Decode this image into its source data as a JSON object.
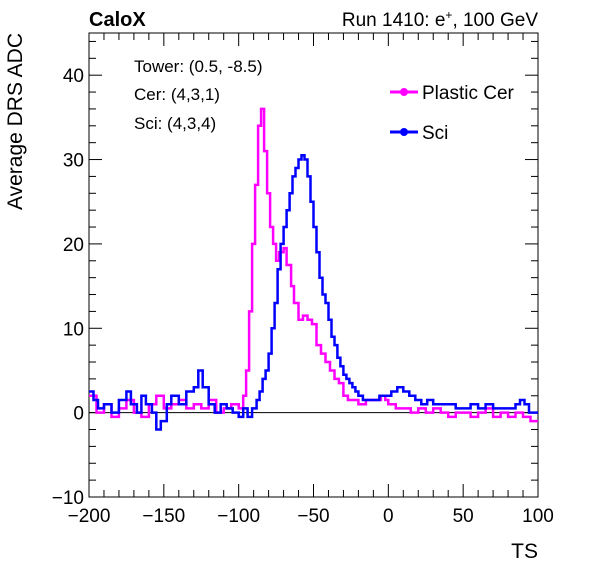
{
  "header": {
    "brand": "CaloX",
    "run_label_prefix": "Run 1410: e",
    "run_label_sup": "+",
    "run_label_suffix": ", 100 GeV"
  },
  "info_box": {
    "tower": "Tower: (0.5, -8.5)",
    "cer": "Cer: (4,3,1)",
    "sci": "Sci: (4,3,4)"
  },
  "chart_data": {
    "type": "line",
    "title": "",
    "xlabel": "TS",
    "ylabel": "Average DRS ADC",
    "xlim": [
      -200,
      100
    ],
    "ylim": [
      -10,
      45
    ],
    "x_ticks": [
      -200,
      -150,
      -100,
      -50,
      0,
      50,
      100
    ],
    "y_ticks": [
      -10,
      0,
      10,
      20,
      30,
      40
    ],
    "x_tick_labels": [
      "−200",
      "−150",
      "−100",
      "−50",
      "0",
      "50",
      "100"
    ],
    "y_tick_labels": [
      "−10",
      "0",
      "10",
      "20",
      "30",
      "40"
    ],
    "reference_line_y": 0,
    "legend_position": "top-right",
    "series": [
      {
        "name": "Plastic Cer",
        "color": "#ff00ff",
        "points": [
          [
            -200,
            2
          ],
          [
            -195,
            0
          ],
          [
            -190,
            1
          ],
          [
            -185,
            -0.5
          ],
          [
            -180,
            0.5
          ],
          [
            -175,
            1.5
          ],
          [
            -170,
            0
          ],
          [
            -165,
            -0.5
          ],
          [
            -160,
            1
          ],
          [
            -155,
            2
          ],
          [
            -150,
            0.5
          ],
          [
            -145,
            1
          ],
          [
            -140,
            1.5
          ],
          [
            -135,
            0.5
          ],
          [
            -130,
            1
          ],
          [
            -125,
            0.5
          ],
          [
            -120,
            1.5
          ],
          [
            -115,
            0
          ],
          [
            -110,
            0.5
          ],
          [
            -105,
            1
          ],
          [
            -100,
            0.5
          ],
          [
            -97,
            2
          ],
          [
            -95,
            5
          ],
          [
            -93,
            12
          ],
          [
            -91,
            20
          ],
          [
            -89,
            27
          ],
          [
            -87,
            34
          ],
          [
            -85,
            36
          ],
          [
            -83,
            31
          ],
          [
            -81,
            26
          ],
          [
            -79,
            22
          ],
          [
            -77,
            20
          ],
          [
            -75,
            18
          ],
          [
            -73,
            19
          ],
          [
            -70,
            19.5
          ],
          [
            -68,
            17.5
          ],
          [
            -65,
            15
          ],
          [
            -63,
            13
          ],
          [
            -60,
            11
          ],
          [
            -57,
            11.5
          ],
          [
            -54,
            11
          ],
          [
            -51,
            10.5
          ],
          [
            -48,
            8
          ],
          [
            -45,
            7
          ],
          [
            -42,
            6
          ],
          [
            -39,
            5
          ],
          [
            -36,
            4
          ],
          [
            -33,
            3.5
          ],
          [
            -30,
            2
          ],
          [
            -27,
            1.5
          ],
          [
            -24,
            1.5
          ],
          [
            -20,
            1
          ],
          [
            -15,
            1.5
          ],
          [
            -10,
            1.5
          ],
          [
            -5,
            2
          ],
          [
            -2,
            1.5
          ],
          [
            0,
            1
          ],
          [
            5,
            0.5
          ],
          [
            10,
            0.5
          ],
          [
            15,
            0
          ],
          [
            20,
            0.5
          ],
          [
            25,
            0
          ],
          [
            30,
            0.5
          ],
          [
            35,
            0
          ],
          [
            40,
            -0.5
          ],
          [
            45,
            0
          ],
          [
            50,
            0
          ],
          [
            55,
            -0.5
          ],
          [
            60,
            0
          ],
          [
            65,
            0.5
          ],
          [
            70,
            -0.5
          ],
          [
            75,
            0
          ],
          [
            80,
            -0.5
          ],
          [
            85,
            0
          ],
          [
            90,
            -0.5
          ],
          [
            95,
            -1
          ],
          [
            100,
            -1
          ]
        ]
      },
      {
        "name": "Sci",
        "color": "#0000ff",
        "points": [
          [
            -200,
            2.5
          ],
          [
            -197,
            1.5
          ],
          [
            -194,
            0.5
          ],
          [
            -190,
            1
          ],
          [
            -185,
            0
          ],
          [
            -180,
            1.5
          ],
          [
            -175,
            2.5
          ],
          [
            -172,
            1
          ],
          [
            -168,
            0
          ],
          [
            -165,
            2
          ],
          [
            -162,
            1
          ],
          [
            -158,
            0
          ],
          [
            -155,
            -2
          ],
          [
            -152,
            -1
          ],
          [
            -148,
            1
          ],
          [
            -145,
            2
          ],
          [
            -140,
            1
          ],
          [
            -135,
            2.5
          ],
          [
            -130,
            3
          ],
          [
            -127,
            5
          ],
          [
            -124,
            3
          ],
          [
            -120,
            1
          ],
          [
            -116,
            0
          ],
          [
            -112,
            1
          ],
          [
            -108,
            0.5
          ],
          [
            -104,
            0
          ],
          [
            -100,
            -0.5
          ],
          [
            -97,
            0.5
          ],
          [
            -94,
            -0.5
          ],
          [
            -91,
            0.5
          ],
          [
            -88,
            1.5
          ],
          [
            -86,
            2.5
          ],
          [
            -84,
            4
          ],
          [
            -82,
            5
          ],
          [
            -80,
            7
          ],
          [
            -78,
            10
          ],
          [
            -76,
            13
          ],
          [
            -74,
            17
          ],
          [
            -72,
            20
          ],
          [
            -70,
            22
          ],
          [
            -68,
            24
          ],
          [
            -66,
            26
          ],
          [
            -64,
            28
          ],
          [
            -62,
            29
          ],
          [
            -60,
            30
          ],
          [
            -58,
            30.5
          ],
          [
            -56,
            30
          ],
          [
            -54,
            28
          ],
          [
            -52,
            25
          ],
          [
            -50,
            22
          ],
          [
            -48,
            19
          ],
          [
            -46,
            16
          ],
          [
            -44,
            14
          ],
          [
            -42,
            13
          ],
          [
            -40,
            11
          ],
          [
            -38,
            9
          ],
          [
            -36,
            8
          ],
          [
            -34,
            6.5
          ],
          [
            -32,
            5.5
          ],
          [
            -30,
            4.5
          ],
          [
            -28,
            4
          ],
          [
            -26,
            3.5
          ],
          [
            -24,
            3
          ],
          [
            -22,
            2.5
          ],
          [
            -20,
            2
          ],
          [
            -17,
            1.5
          ],
          [
            -14,
            1.5
          ],
          [
            -10,
            1.5
          ],
          [
            -6,
            2
          ],
          [
            -2,
            2
          ],
          [
            2,
            2.5
          ],
          [
            6,
            3
          ],
          [
            10,
            2.5
          ],
          [
            14,
            2
          ],
          [
            18,
            1.5
          ],
          [
            22,
            1
          ],
          [
            26,
            1.5
          ],
          [
            30,
            1
          ],
          [
            35,
            1
          ],
          [
            40,
            1
          ],
          [
            45,
            0.5
          ],
          [
            50,
            0.5
          ],
          [
            55,
            1
          ],
          [
            60,
            0.5
          ],
          [
            65,
            1
          ],
          [
            70,
            0.5
          ],
          [
            75,
            0.5
          ],
          [
            80,
            0.5
          ],
          [
            85,
            1
          ],
          [
            88,
            1.5
          ],
          [
            91,
            1
          ],
          [
            94,
            0
          ],
          [
            97,
            0
          ],
          [
            100,
            0
          ]
        ]
      }
    ]
  }
}
